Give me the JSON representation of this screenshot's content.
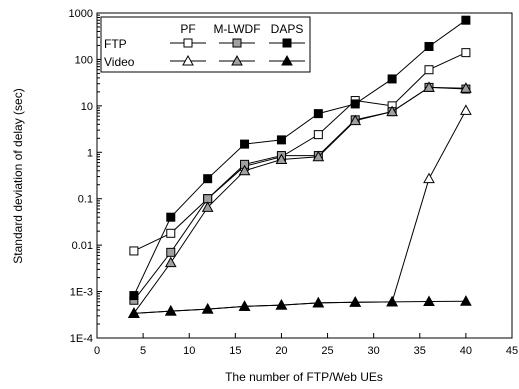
{
  "chart_data": {
    "type": "line",
    "xlabel": "The number of FTP/Web UEs",
    "ylabel": "Standard deviation of delay (sec)",
    "xlim": [
      0,
      45
    ],
    "ylim": [
      0.0001,
      1000
    ],
    "yscale": "log",
    "xticks": [
      0,
      5,
      10,
      15,
      20,
      25,
      30,
      35,
      40,
      45
    ],
    "xtick_labels": [
      "0",
      "5",
      "10",
      "15",
      "20",
      "25",
      "30",
      "35",
      "40",
      "45"
    ],
    "yticks": [
      0.0001,
      0.001,
      0.01,
      0.1,
      1,
      10,
      100,
      1000
    ],
    "ytick_labels": [
      "1E-4",
      "1E-3",
      "0.01",
      "0.1",
      "1",
      "10",
      "100",
      "1000"
    ],
    "legend_placement": "top-left",
    "legend": {
      "columns": [
        "PF",
        "M-LWDF",
        "DAPS"
      ],
      "rows": [
        "FTP",
        "Video"
      ]
    },
    "x": [
      4,
      8,
      12,
      16,
      20,
      24,
      28,
      32,
      36,
      40
    ],
    "series": [
      {
        "name": "PF",
        "group": "FTP",
        "marker": "square",
        "fill": "#ffffff",
        "values": [
          0.0075,
          0.018,
          0.1,
          0.5,
          0.8,
          2.4,
          13,
          10,
          60,
          140
        ]
      },
      {
        "name": "M-LWDF",
        "group": "FTP",
        "marker": "square",
        "fill": "#a0a0a0",
        "values": [
          0.00065,
          0.007,
          0.1,
          0.55,
          0.85,
          0.85,
          5,
          7.5,
          25,
          23
        ]
      },
      {
        "name": "DAPS",
        "group": "FTP",
        "marker": "square",
        "fill": "#000000",
        "values": [
          0.00082,
          0.04,
          0.27,
          1.5,
          1.85,
          6.8,
          11,
          38,
          190,
          700
        ]
      },
      {
        "name": "PF",
        "group": "Video",
        "marker": "triangle",
        "fill": "#ffffff",
        "values": [
          0.00034,
          0.00038,
          0.00042,
          0.00048,
          0.00051,
          0.00057,
          0.00059,
          0.0006,
          0.27,
          8
        ]
      },
      {
        "name": "M-LWDF",
        "group": "Video",
        "marker": "triangle",
        "fill": "#a0a0a0",
        "values": [
          0.00034,
          0.0042,
          0.065,
          0.4,
          0.7,
          0.8,
          4.8,
          7.5,
          25,
          24
        ]
      },
      {
        "name": "DAPS",
        "group": "Video",
        "marker": "triangle",
        "fill": "#000000",
        "values": [
          0.00034,
          0.00038,
          0.00042,
          0.00048,
          0.00051,
          0.00057,
          0.00059,
          0.0006,
          0.00061,
          0.00062
        ]
      }
    ]
  }
}
